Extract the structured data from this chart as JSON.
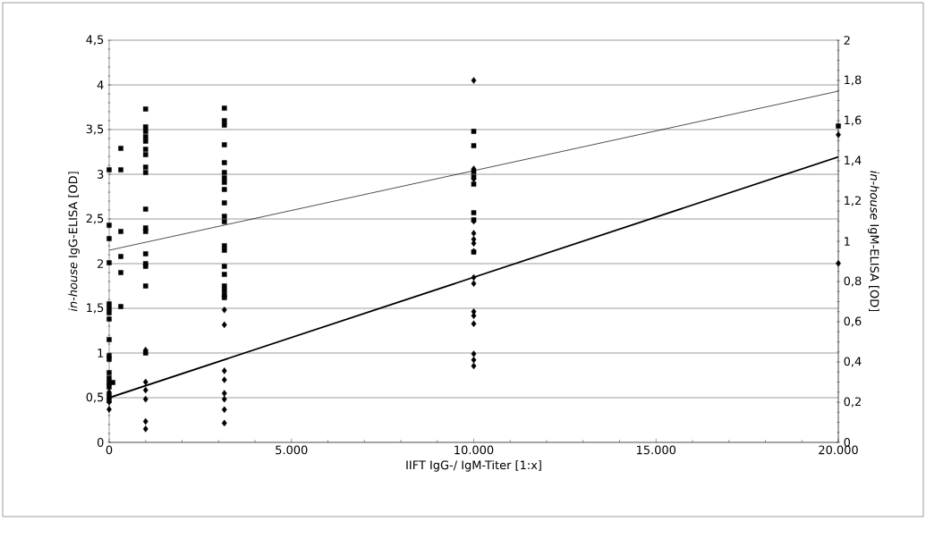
{
  "chart_data": {
    "type": "scatter",
    "xlabel": "IIFT IgG-/ IgM-Titer [1:x]",
    "ylabel": "*in-house* IgG-ELISA [OD]",
    "y2label": "*in-house* IgM-ELISA [OD]",
    "xlim": [
      0,
      20000
    ],
    "xticks": [
      {
        "value": 0,
        "label": "0"
      },
      {
        "value": 5000,
        "label": "5.000"
      },
      {
        "value": 10000,
        "label": "10.000"
      },
      {
        "value": 15000,
        "label": "15.000"
      },
      {
        "value": 20000,
        "label": "20.000"
      }
    ],
    "ylim": [
      0,
      4.5
    ],
    "yticks": [
      0,
      {
        "value": 0.5,
        "label": "0,5"
      },
      1,
      {
        "value": 1.5,
        "label": "1,5"
      },
      2,
      {
        "value": 2.5,
        "label": "2,5"
      },
      3,
      {
        "value": 3.5,
        "label": "3,5"
      },
      4,
      {
        "value": 4.5,
        "label": "4,5"
      }
    ],
    "y2lim": [
      0,
      2
    ],
    "y2ticks": [
      0,
      {
        "value": 0.2,
        "label": "0,2"
      },
      {
        "value": 0.4,
        "label": "0,4"
      },
      {
        "value": 0.6,
        "label": "0,6"
      },
      {
        "value": 0.8,
        "label": "0,8"
      },
      1,
      {
        "value": 1.2,
        "label": "1,2"
      },
      {
        "value": 1.4,
        "label": "1,4"
      },
      {
        "value": 1.6,
        "label": "1,6"
      },
      {
        "value": 1.8,
        "label": "1,8"
      },
      2
    ],
    "grid": "y",
    "legend": false,
    "series": [
      {
        "marker": "square",
        "color": "#000000",
        "x": [
          0,
          0,
          0,
          0,
          0,
          0,
          0,
          0,
          0,
          0,
          0,
          0,
          0,
          0,
          0,
          0,
          0,
          100,
          320,
          320,
          320,
          320,
          320,
          320,
          1000,
          1000,
          1000,
          1000,
          1000,
          1000,
          1000,
          1000,
          1000,
          1000,
          1000,
          1000,
          1000,
          1000,
          1000,
          1000,
          1000,
          3160,
          3160,
          3160,
          3160,
          3160,
          3160,
          3160,
          3160,
          3160,
          3160,
          3160,
          3160,
          3160,
          3160,
          3160,
          3160,
          3160,
          3160,
          3160,
          3160,
          10000,
          10000,
          10000,
          10000,
          10000,
          10000,
          10000,
          10000,
          20000
        ],
        "values": [
          3.05,
          2.43,
          2.28,
          2.01,
          1.55,
          1.5,
          1.45,
          1.38,
          1.15,
          0.97,
          0.93,
          0.78,
          0.72,
          0.62,
          0.53,
          0.47,
          0.67,
          0.67,
          3.29,
          3.05,
          2.36,
          2.08,
          1.9,
          1.52,
          3.73,
          3.53,
          3.48,
          3.42,
          3.37,
          3.28,
          3.22,
          3.08,
          3.02,
          2.61,
          2.4,
          2.36,
          2.11,
          2.0,
          1.97,
          1.75,
          1.0,
          3.74,
          3.6,
          3.55,
          3.33,
          3.13,
          3.02,
          2.96,
          2.91,
          2.83,
          2.68,
          2.53,
          2.47,
          2.2,
          2.15,
          1.97,
          1.88,
          1.75,
          1.7,
          1.65,
          1.62,
          3.48,
          3.32,
          3.03,
          2.97,
          2.89,
          2.57,
          2.49,
          2.13,
          3.54
        ]
      },
      {
        "marker": "diamond",
        "color": "#000000",
        "axis": "y2",
        "x": [
          0,
          0,
          0,
          0,
          0,
          1000,
          1000,
          1000,
          1000,
          1000,
          1000,
          3160,
          3160,
          3160,
          3160,
          3160,
          3160,
          3160,
          3160,
          10000,
          10000,
          10000,
          10000,
          10000,
          10000,
          10000,
          10000,
          10000,
          10000,
          10000,
          10000,
          10000,
          10000,
          10000,
          10000,
          20000,
          20000
        ],
        "values": [
          0.164,
          0.2,
          0.22,
          0.25,
          0.29,
          0.459,
          0.3,
          0.26,
          0.215,
          0.104,
          0.067,
          0.659,
          0.585,
          0.356,
          0.311,
          0.244,
          0.215,
          0.163,
          0.096,
          1.8,
          1.36,
          1.31,
          1.1,
          1.04,
          1.01,
          0.99,
          0.95,
          0.82,
          0.79,
          0.65,
          0.63,
          0.59,
          0.44,
          0.41,
          0.38,
          1.53,
          0.89
        ]
      },
      {
        "type": "line",
        "marker": "none",
        "line_style": "solid",
        "color": "#000000",
        "x": [
          0,
          20000
        ],
        "values": [
          2.15,
          3.93
        ]
      },
      {
        "type": "line",
        "marker": "none",
        "line_style": "solid",
        "color": "#000000",
        "axis": "y2",
        "x": [
          0,
          20000
        ],
        "values": [
          0.222,
          1.42
        ]
      }
    ]
  }
}
